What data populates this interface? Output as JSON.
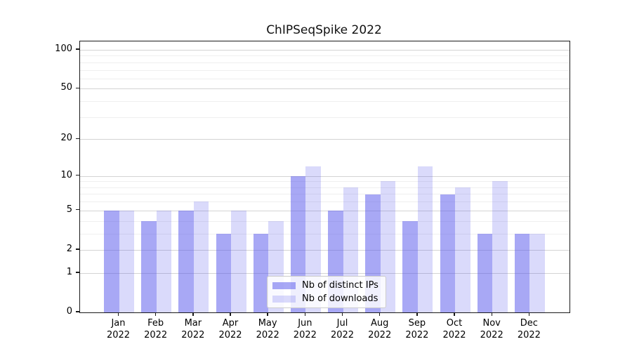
{
  "figure": {
    "background": "#ffffff"
  },
  "chart_data": {
    "type": "bar",
    "title": "ChIPSeqSpike 2022",
    "xlabel": "",
    "ylabel": "",
    "year": "2022",
    "months": [
      "Jan",
      "Feb",
      "Mar",
      "Apr",
      "May",
      "Jun",
      "Jul",
      "Aug",
      "Sep",
      "Oct",
      "Nov",
      "Dec"
    ],
    "categories": [
      "Jan 2022",
      "Feb 2022",
      "Mar 2022",
      "Apr 2022",
      "May 2022",
      "Jun 2022",
      "Jul 2022",
      "Aug 2022",
      "Sep 2022",
      "Oct 2022",
      "Nov 2022",
      "Dec 2022"
    ],
    "series": [
      {
        "name": "Nb of distinct IPs",
        "values": [
          5,
          4,
          5,
          3,
          3,
          10,
          5,
          7,
          4,
          7,
          3,
          3
        ],
        "fill": "rgba(88,88,235,0.52)",
        "hex": "#a9a9f1"
      },
      {
        "name": "Nb of downloads",
        "values": [
          5,
          5,
          6,
          5,
          4,
          12,
          8,
          9,
          12,
          8,
          9,
          3
        ],
        "fill": "rgba(88,88,235,0.22)",
        "hex": "#d9d9f8"
      }
    ],
    "yscale": "log1p",
    "yticks": [
      0,
      1,
      2,
      5,
      10,
      20,
      50,
      100
    ],
    "ytick_labels": [
      "0",
      "1",
      "2",
      "5",
      "10",
      "20",
      "50",
      "100"
    ],
    "minor_gridlines": [
      3,
      4,
      6,
      7,
      8,
      9,
      30,
      40,
      60,
      70,
      80,
      90
    ],
    "ylim": [
      0,
      120
    ],
    "grid": true,
    "legend_position": "lower-center-inside",
    "gridline_major_color": "#d4d4d4",
    "gridline_minor_color": "#efefef"
  }
}
